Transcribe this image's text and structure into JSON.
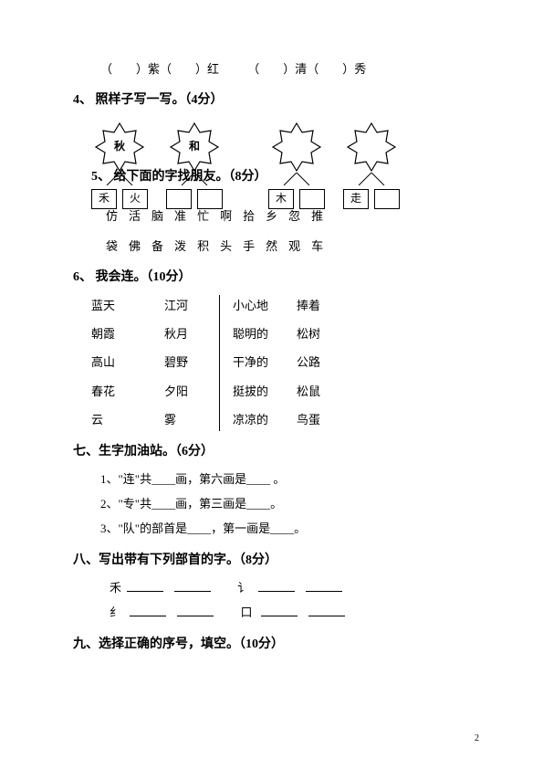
{
  "topLine": {
    "a": "（　　）紫（　　）红",
    "b": "（　　）清（　　）秀"
  },
  "q4": {
    "heading": "4、 照样子写一写。（4分）",
    "star1": "秋",
    "star2": "和",
    "box1a": "禾",
    "box1b": "火",
    "box2a": "",
    "box2b": "",
    "box3a": "木",
    "box3b": "",
    "box4a": "走",
    "box4b": ""
  },
  "q5": {
    "overlay": "5、 给下面的字找朋友。（8分）",
    "row1": [
      "仿",
      "活",
      "脑",
      "准",
      "忙",
      "啊",
      "拾",
      "乡",
      "忽",
      "推"
    ],
    "row2": [
      "袋",
      "佛",
      "备",
      "泼",
      "积",
      "头",
      "手",
      "然",
      "观",
      "车"
    ]
  },
  "q6": {
    "heading": "6、 我会连。（10分）",
    "left1": [
      "蓝天",
      "朝霞",
      "高山",
      "春花",
      "云"
    ],
    "left2": [
      "江河",
      "秋月",
      "碧野",
      "夕阳",
      "雾"
    ],
    "right1": [
      "小心地",
      "聪明的",
      "干净的",
      "挺拔的",
      "凉凉的"
    ],
    "right2": [
      "捧着",
      "松树",
      "公路",
      "松鼠",
      "鸟蛋"
    ]
  },
  "q7": {
    "heading": "七、生字加油站。（6分）",
    "lines": [
      "1、\"连\"共____画，第六画是____ 。",
      "2、\"专\"共____画，第三画是____。",
      "3、\"队\"的部首是____，第一画是____。"
    ]
  },
  "q8": {
    "heading": "八、写出带有下列部首的字。（8分）",
    "rad1a": "禾",
    "rad1b": "讠",
    "rad2a": "纟",
    "rad2b": "口"
  },
  "q9": {
    "heading": "九、选择正确的序号，填空。（10分）"
  },
  "pageNum": "2"
}
